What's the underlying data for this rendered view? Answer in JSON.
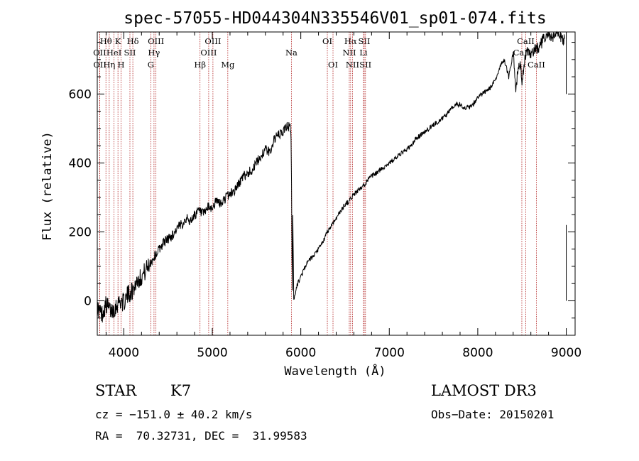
{
  "chart_data": {
    "type": "line",
    "title": "spec-57055-HD044304N335546V01_sp01-074.fits",
    "xlabel": "Wavelength (Å)",
    "ylabel": "Flux (relative)",
    "xlim": [
      3700,
      9100
    ],
    "ylim": [
      -100,
      780
    ],
    "xticks": [
      4000,
      5000,
      6000,
      7000,
      8000,
      9000
    ],
    "yticks": [
      0,
      200,
      400,
      600
    ],
    "grid": false,
    "legend": "none",
    "series": [
      {
        "name": "flux",
        "x": [
          3700,
          3750,
          3800,
          3850,
          3900,
          3950,
          4000,
          4050,
          4100,
          4150,
          4200,
          4250,
          4300,
          4350,
          4400,
          4450,
          4500,
          4550,
          4600,
          4650,
          4700,
          4750,
          4800,
          4850,
          4900,
          4950,
          5000,
          5050,
          5100,
          5150,
          5200,
          5250,
          5300,
          5350,
          5400,
          5450,
          5500,
          5550,
          5600,
          5650,
          5700,
          5750,
          5800,
          5850,
          5880,
          5890,
          5895,
          5900,
          5905,
          5910,
          5920,
          5930,
          5940,
          5950,
          6000,
          6050,
          6100,
          6150,
          6200,
          6250,
          6300,
          6350,
          6400,
          6450,
          6500,
          6550,
          6600,
          6650,
          6700,
          6750,
          6800,
          6850,
          6900,
          6950,
          7000,
          7050,
          7100,
          7150,
          7200,
          7250,
          7300,
          7350,
          7400,
          7450,
          7500,
          7550,
          7600,
          7650,
          7700,
          7750,
          7800,
          7850,
          7900,
          7950,
          8000,
          8050,
          8100,
          8150,
          8200,
          8250,
          8300,
          8350,
          8400,
          8430,
          8450,
          8480,
          8500,
          8530,
          8560,
          8600,
          8650,
          8700,
          8750,
          8800,
          8850,
          8900,
          8950,
          8980
        ],
        "values": [
          -20,
          -40,
          -10,
          -30,
          -20,
          0,
          -5,
          20,
          30,
          60,
          70,
          90,
          110,
          130,
          150,
          170,
          180,
          190,
          210,
          220,
          240,
          230,
          250,
          260,
          250,
          270,
          270,
          290,
          280,
          300,
          310,
          320,
          340,
          360,
          370,
          380,
          400,
          420,
          440,
          430,
          470,
          480,
          490,
          510,
          500,
          480,
          350,
          150,
          30,
          250,
          5,
          15,
          25,
          40,
          70,
          100,
          120,
          130,
          150,
          170,
          200,
          220,
          240,
          260,
          280,
          290,
          310,
          320,
          330,
          350,
          360,
          370,
          380,
          390,
          400,
          410,
          420,
          430,
          440,
          450,
          470,
          480,
          490,
          500,
          510,
          520,
          530,
          540,
          560,
          570,
          570,
          560,
          560,
          570,
          590,
          600,
          610,
          620,
          640,
          680,
          700,
          650,
          720,
          610,
          660,
          690,
          640,
          700,
          720,
          710,
          730,
          740,
          760,
          770,
          760,
          780,
          760,
          760
        ]
      }
    ],
    "spectral_lines": [
      {
        "label": "Hθ",
        "x": 3798,
        "row": 1
      },
      {
        "label": "OII",
        "x": 3727,
        "row": 2
      },
      {
        "label": "OII",
        "x": 3729,
        "row": 3
      },
      {
        "label": "HeI",
        "x": 3889,
        "row": 2
      },
      {
        "label": "Hη",
        "x": 3835,
        "row": 3
      },
      {
        "label": "K",
        "x": 3934,
        "row": 1
      },
      {
        "label": "SII",
        "x": 4069,
        "row": 2
      },
      {
        "label": "H",
        "x": 3969,
        "row": 3
      },
      {
        "label": "Hδ",
        "x": 4102,
        "row": 1
      },
      {
        "label": "OIII",
        "x": 4363,
        "row": 1
      },
      {
        "label": "Hγ",
        "x": 4341,
        "row": 2
      },
      {
        "label": "G",
        "x": 4305,
        "row": 3
      },
      {
        "label": "OIII",
        "x": 5007,
        "row": 1
      },
      {
        "label": "OIII",
        "x": 4959,
        "row": 2
      },
      {
        "label": "Hβ",
        "x": 4861,
        "row": 3
      },
      {
        "label": "Mg",
        "x": 5175,
        "row": 3
      },
      {
        "label": "Na",
        "x": 5894,
        "row": 2
      },
      {
        "label": "OI",
        "x": 6300,
        "row": 1
      },
      {
        "label": "OI",
        "x": 6364,
        "row": 3
      },
      {
        "label": "Hα",
        "x": 6563,
        "row": 1
      },
      {
        "label": "NII",
        "x": 6548,
        "row": 2
      },
      {
        "label": "NII",
        "x": 6584,
        "row": 3
      },
      {
        "label": "SII",
        "x": 6717,
        "row": 1
      },
      {
        "label": "Li",
        "x": 6708,
        "row": 2
      },
      {
        "label": "SII",
        "x": 6731,
        "row": 3
      },
      {
        "label": "CaII",
        "x": 8542,
        "row": 1
      },
      {
        "label": "CaII",
        "x": 8498,
        "row": 2
      },
      {
        "label": "CaII",
        "x": 8662,
        "row": 3
      }
    ]
  },
  "info": {
    "class_label": "STAR",
    "subclass": "K7",
    "survey": "LAMOST DR3",
    "cz": "cz = −151.0 ± 40.2 km/s",
    "obs_date": "Obs−Date: 20150201",
    "coords": "RA =  70.32731, DEC =  31.99583"
  }
}
